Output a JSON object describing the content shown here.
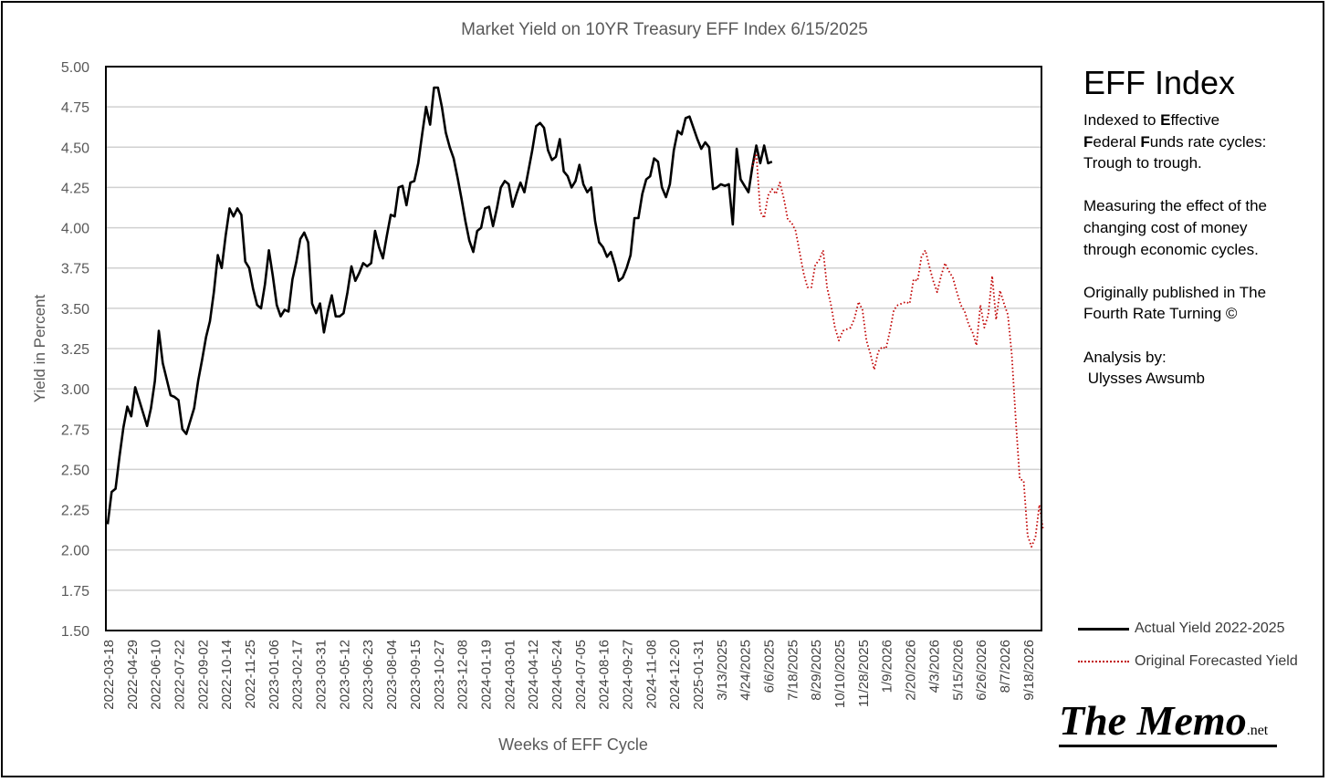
{
  "chart_data": {
    "type": "line",
    "title": "Market Yield on 10YR Treasury EFF Index 6/15/2025",
    "xlabel": "Weeks of EFF Cycle",
    "ylabel": "Yield in Percent",
    "ylim": [
      1.5,
      5.0
    ],
    "yticks": [
      "5.00",
      "4.75",
      "4.50",
      "4.25",
      "4.00",
      "3.75",
      "3.50",
      "3.25",
      "3.00",
      "2.75",
      "2.50",
      "2.25",
      "2.00",
      "1.75",
      "1.50"
    ],
    "grid": "horizontal",
    "total_weeks": 213,
    "xtick_labels": [
      "2022-03-18",
      "2022-04-29",
      "2022-06-10",
      "2022-07-22",
      "2022-09-02",
      "2022-10-14",
      "2022-11-25",
      "2023-01-06",
      "2023-02-17",
      "2023-03-31",
      "2023-05-12",
      "2023-06-23",
      "2023-08-04",
      "2023-09-15",
      "2023-10-27",
      "2023-12-08",
      "2024-01-19",
      "2024-03-01",
      "2024-04-12",
      "2024-05-24",
      "2024-07-05",
      "2024-08-16",
      "2024-09-27",
      "2024-11-08",
      "2024-12-20",
      "2025-01-31",
      "3/13/2025",
      "4/24/2025",
      "6/6/2025",
      "7/18/2025",
      "8/29/2025",
      "10/10/2025",
      "11/28/2025",
      "1/9/2026",
      "2/20/2026",
      "4/3/2026",
      "5/15/2026",
      "6/26/2026",
      "8/7/2026",
      "9/18/2026"
    ],
    "series": [
      {
        "name": "Actual Yield 2022-2025",
        "color": "#000000",
        "style": "solid",
        "points": [
          [
            0,
            2.16
          ],
          [
            1,
            2.36
          ],
          [
            2,
            2.38
          ],
          [
            3,
            2.58
          ],
          [
            4,
            2.76
          ],
          [
            5,
            2.89
          ],
          [
            6,
            2.83
          ],
          [
            7,
            3.01
          ],
          [
            8,
            2.93
          ],
          [
            9,
            2.85
          ],
          [
            10,
            2.77
          ],
          [
            11,
            2.88
          ],
          [
            12,
            3.05
          ],
          [
            13,
            3.36
          ],
          [
            14,
            3.16
          ],
          [
            15,
            3.06
          ],
          [
            16,
            2.96
          ],
          [
            17,
            2.95
          ],
          [
            18,
            2.93
          ],
          [
            19,
            2.75
          ],
          [
            20,
            2.72
          ],
          [
            21,
            2.8
          ],
          [
            22,
            2.88
          ],
          [
            23,
            3.05
          ],
          [
            24,
            3.18
          ],
          [
            25,
            3.32
          ],
          [
            26,
            3.42
          ],
          [
            27,
            3.6
          ],
          [
            28,
            3.83
          ],
          [
            29,
            3.75
          ],
          [
            30,
            3.95
          ],
          [
            31,
            4.12
          ],
          [
            32,
            4.07
          ],
          [
            33,
            4.12
          ],
          [
            34,
            4.08
          ],
          [
            35,
            3.79
          ],
          [
            36,
            3.75
          ],
          [
            37,
            3.62
          ],
          [
            38,
            3.52
          ],
          [
            39,
            3.5
          ],
          [
            40,
            3.65
          ],
          [
            41,
            3.86
          ],
          [
            42,
            3.7
          ],
          [
            43,
            3.52
          ],
          [
            44,
            3.45
          ],
          [
            45,
            3.49
          ],
          [
            46,
            3.48
          ],
          [
            47,
            3.68
          ],
          [
            48,
            3.79
          ],
          [
            49,
            3.93
          ],
          [
            50,
            3.97
          ],
          [
            51,
            3.91
          ],
          [
            52,
            3.53
          ],
          [
            53,
            3.47
          ],
          [
            54,
            3.53
          ],
          [
            55,
            3.35
          ],
          [
            56,
            3.48
          ],
          [
            57,
            3.58
          ],
          [
            58,
            3.45
          ],
          [
            59,
            3.45
          ],
          [
            60,
            3.47
          ],
          [
            61,
            3.6
          ],
          [
            62,
            3.76
          ],
          [
            63,
            3.67
          ],
          [
            64,
            3.72
          ],
          [
            65,
            3.78
          ],
          [
            66,
            3.76
          ],
          [
            67,
            3.78
          ],
          [
            68,
            3.98
          ],
          [
            69,
            3.88
          ],
          [
            70,
            3.81
          ],
          [
            71,
            3.95
          ],
          [
            72,
            4.08
          ],
          [
            73,
            4.07
          ],
          [
            74,
            4.25
          ],
          [
            75,
            4.26
          ],
          [
            76,
            4.14
          ],
          [
            77,
            4.28
          ],
          [
            78,
            4.29
          ],
          [
            79,
            4.4
          ],
          [
            80,
            4.58
          ],
          [
            81,
            4.75
          ],
          [
            82,
            4.64
          ],
          [
            83,
            4.87
          ],
          [
            84,
            4.87
          ],
          [
            85,
            4.75
          ],
          [
            86,
            4.59
          ],
          [
            87,
            4.5
          ],
          [
            88,
            4.43
          ],
          [
            89,
            4.31
          ],
          [
            90,
            4.18
          ],
          [
            91,
            4.04
          ],
          [
            92,
            3.92
          ],
          [
            93,
            3.85
          ],
          [
            94,
            3.98
          ],
          [
            95,
            4.0
          ],
          [
            96,
            4.12
          ],
          [
            97,
            4.13
          ],
          [
            98,
            4.01
          ],
          [
            99,
            4.12
          ],
          [
            100,
            4.25
          ],
          [
            101,
            4.29
          ],
          [
            102,
            4.27
          ],
          [
            103,
            4.13
          ],
          [
            104,
            4.21
          ],
          [
            105,
            4.28
          ],
          [
            106,
            4.22
          ],
          [
            107,
            4.35
          ],
          [
            108,
            4.48
          ],
          [
            109,
            4.63
          ],
          [
            110,
            4.65
          ],
          [
            111,
            4.62
          ],
          [
            112,
            4.48
          ],
          [
            113,
            4.42
          ],
          [
            114,
            4.44
          ],
          [
            115,
            4.55
          ],
          [
            116,
            4.35
          ],
          [
            117,
            4.32
          ],
          [
            118,
            4.25
          ],
          [
            119,
            4.29
          ],
          [
            120,
            4.39
          ],
          [
            121,
            4.27
          ],
          [
            122,
            4.22
          ],
          [
            123,
            4.25
          ],
          [
            124,
            4.04
          ],
          [
            125,
            3.91
          ],
          [
            126,
            3.88
          ],
          [
            127,
            3.82
          ],
          [
            128,
            3.85
          ],
          [
            129,
            3.77
          ],
          [
            130,
            3.67
          ],
          [
            131,
            3.69
          ],
          [
            132,
            3.75
          ],
          [
            133,
            3.83
          ],
          [
            134,
            4.06
          ],
          [
            135,
            4.06
          ],
          [
            136,
            4.21
          ],
          [
            137,
            4.3
          ],
          [
            138,
            4.32
          ],
          [
            139,
            4.43
          ],
          [
            140,
            4.41
          ],
          [
            141,
            4.25
          ],
          [
            142,
            4.19
          ],
          [
            143,
            4.27
          ],
          [
            144,
            4.48
          ],
          [
            145,
            4.6
          ],
          [
            146,
            4.58
          ],
          [
            147,
            4.68
          ],
          [
            148,
            4.69
          ],
          [
            149,
            4.62
          ],
          [
            150,
            4.55
          ],
          [
            151,
            4.49
          ],
          [
            152,
            4.53
          ],
          [
            153,
            4.5
          ],
          [
            154,
            4.24
          ],
          [
            155,
            4.25
          ],
          [
            156,
            4.27
          ],
          [
            157,
            4.26
          ],
          [
            158,
            4.27
          ],
          [
            159,
            4.02
          ],
          [
            160,
            4.49
          ],
          [
            161,
            4.3
          ],
          [
            162,
            4.26
          ],
          [
            163,
            4.22
          ],
          [
            164,
            4.38
          ],
          [
            165,
            4.51
          ],
          [
            166,
            4.4
          ],
          [
            167,
            4.51
          ],
          [
            168,
            4.4
          ],
          [
            169,
            4.41
          ]
        ]
      },
      {
        "name": "Original Forecasted Yield",
        "color": "#c00000",
        "style": "dotted",
        "points": [
          [
            164,
            4.38
          ],
          [
            165,
            4.46
          ],
          [
            166,
            4.1
          ],
          [
            167,
            4.06
          ],
          [
            168,
            4.2
          ],
          [
            169,
            4.24
          ],
          [
            170,
            4.21
          ],
          [
            171,
            4.28
          ],
          [
            172,
            4.18
          ],
          [
            173,
            4.05
          ],
          [
            174,
            4.03
          ],
          [
            175,
            3.98
          ],
          [
            176,
            3.85
          ],
          [
            177,
            3.72
          ],
          [
            178,
            3.63
          ],
          [
            179,
            3.63
          ],
          [
            180,
            3.77
          ],
          [
            181,
            3.8
          ],
          [
            182,
            3.86
          ],
          [
            183,
            3.63
          ],
          [
            184,
            3.52
          ],
          [
            185,
            3.38
          ],
          [
            186,
            3.3
          ],
          [
            187,
            3.36
          ],
          [
            188,
            3.37
          ],
          [
            189,
            3.38
          ],
          [
            190,
            3.44
          ],
          [
            191,
            3.54
          ],
          [
            192,
            3.49
          ],
          [
            193,
            3.3
          ],
          [
            194,
            3.22
          ],
          [
            195,
            3.12
          ],
          [
            196,
            3.23
          ],
          [
            197,
            3.26
          ],
          [
            198,
            3.25
          ],
          [
            199,
            3.36
          ],
          [
            200,
            3.49
          ],
          [
            201,
            3.52
          ],
          [
            202,
            3.53
          ],
          [
            203,
            3.54
          ],
          [
            204,
            3.53
          ],
          [
            205,
            3.68
          ],
          [
            206,
            3.67
          ],
          [
            207,
            3.82
          ],
          [
            208,
            3.86
          ],
          [
            209,
            3.76
          ],
          [
            210,
            3.67
          ],
          [
            211,
            3.6
          ],
          [
            212,
            3.7
          ],
          [
            213,
            3.78
          ],
          [
            214,
            3.73
          ],
          [
            215,
            3.69
          ],
          [
            216,
            3.6
          ],
          [
            217,
            3.52
          ],
          [
            218,
            3.48
          ],
          [
            219,
            3.4
          ],
          [
            220,
            3.35
          ],
          [
            221,
            3.27
          ],
          [
            222,
            3.52
          ],
          [
            223,
            3.38
          ],
          [
            224,
            3.46
          ],
          [
            225,
            3.7
          ],
          [
            226,
            3.43
          ],
          [
            227,
            3.61
          ],
          [
            228,
            3.53
          ],
          [
            229,
            3.46
          ],
          [
            230,
            3.21
          ],
          [
            231,
            2.8
          ],
          [
            232,
            2.44
          ],
          [
            233,
            2.43
          ],
          [
            234,
            2.09
          ],
          [
            235,
            2.02
          ],
          [
            236,
            2.08
          ],
          [
            237,
            2.28
          ],
          [
            238,
            2.12
          ]
        ]
      }
    ]
  },
  "sidebar": {
    "heading": "EFF Index",
    "p1_lines": [
      {
        "pre": "Indexed to ",
        "bold": "E",
        "post": "ffective"
      },
      {
        "pre": "",
        "bold": "F",
        "post": "ederal "
      },
      {
        "pre": "",
        "bold": "F",
        "post": "unds rate"
      }
    ],
    "p1_rest": "cycles: Trough to trough.",
    "p2": "Measuring the effect of the changing cost of money through economic cycles.",
    "p3": "Originally published in The Fourth Rate Turning ©",
    "p4_label": "Analysis by:",
    "p4_name": "Ulysses Awsumb"
  },
  "legend": {
    "actual": "Actual Yield 2022-2025",
    "forecast": "Original Forecasted Yield"
  },
  "logo": {
    "text": "The Memo",
    "suffix": ".net"
  }
}
